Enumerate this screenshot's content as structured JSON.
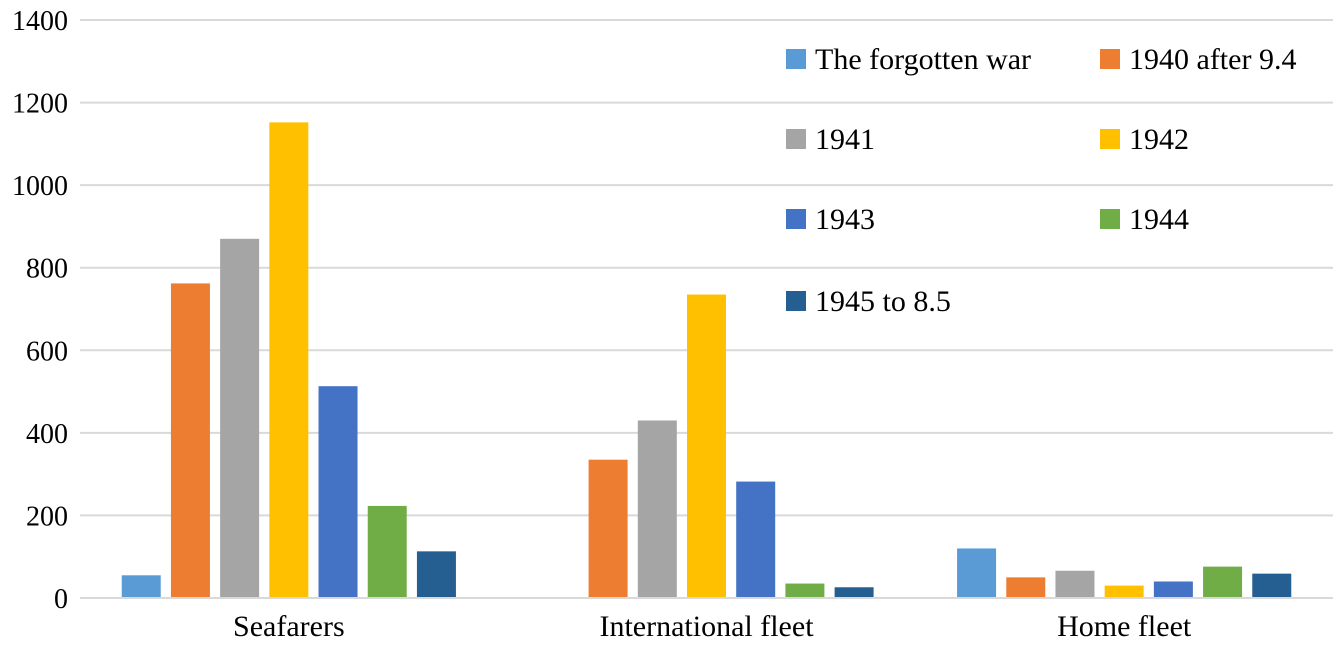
{
  "chart_data": {
    "type": "bar",
    "title": "",
    "xlabel": "",
    "ylabel": "",
    "ylim": [
      0,
      1400
    ],
    "yticks": [
      0,
      200,
      400,
      600,
      800,
      1000,
      1200,
      1400
    ],
    "grid": true,
    "legend_position": "top-right",
    "categories": [
      "Seafarers",
      "International fleet",
      "Home fleet"
    ],
    "series": [
      {
        "name": "The forgotten war",
        "color": "#5b9bd5",
        "values": [
          55,
          0,
          120
        ]
      },
      {
        "name": "1940 after 9.4",
        "color": "#ed7d31",
        "values": [
          762,
          335,
          50
        ]
      },
      {
        "name": "1941",
        "color": "#a5a5a5",
        "values": [
          870,
          430,
          66
        ]
      },
      {
        "name": "1942",
        "color": "#ffc000",
        "values": [
          1152,
          735,
          30
        ]
      },
      {
        "name": "1943",
        "color": "#4472c4",
        "values": [
          513,
          282,
          40
        ]
      },
      {
        "name": "1944",
        "color": "#70ad47",
        "values": [
          223,
          35,
          76
        ]
      },
      {
        "name": "1945 to 8.5",
        "color": "#255e91",
        "values": [
          113,
          26,
          59
        ]
      }
    ]
  }
}
